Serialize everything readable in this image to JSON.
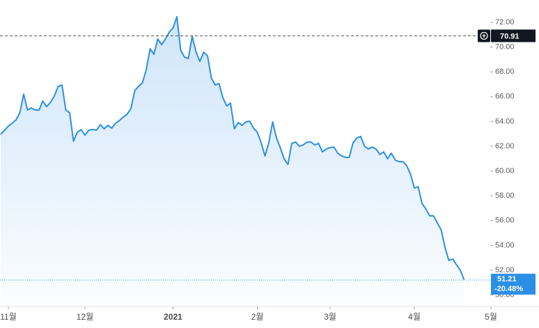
{
  "chart_data": {
    "type": "area",
    "color": "#2b8fe6",
    "fill_color": "#cfe5fa",
    "categories": [
      null,
      null,
      "11월",
      null,
      null,
      null,
      null,
      null,
      null,
      null,
      null,
      null,
      null,
      null,
      null,
      null,
      null,
      null,
      null,
      null,
      null,
      null,
      "12월",
      null,
      null,
      null,
      null,
      null,
      null,
      null,
      null,
      null,
      null,
      null,
      null,
      null,
      null,
      null,
      null,
      null,
      null,
      null,
      null,
      null,
      null,
      "2021",
      null,
      null,
      null,
      null,
      null,
      null,
      null,
      null,
      null,
      null,
      null,
      null,
      null,
      null,
      null,
      null,
      null,
      null,
      null,
      null,
      null,
      "2월",
      null,
      null,
      null,
      null,
      null,
      null,
      null,
      null,
      null,
      null,
      null,
      null,
      null,
      null,
      null,
      null,
      null,
      null,
      "3월",
      null,
      null,
      null,
      null,
      null,
      null,
      null,
      null,
      null,
      null,
      null,
      null,
      null,
      null,
      null,
      null,
      null,
      null,
      null,
      null,
      null,
      "4월",
      null,
      null,
      null,
      null,
      null,
      null,
      null,
      null,
      null,
      null,
      null,
      null,
      null,
      null,
      null,
      null,
      null,
      null,
      null,
      "5월"
    ],
    "values": [
      62.96,
      63.3,
      63.63,
      63.86,
      64.13,
      64.7,
      66.2,
      64.92,
      65.09,
      64.92,
      64.92,
      65.65,
      65.2,
      65.54,
      66.05,
      66.83,
      66.94,
      64.92,
      64.7,
      62.4,
      63.13,
      63.35,
      62.9,
      63.3,
      63.35,
      63.3,
      63.74,
      63.41,
      63.69,
      63.46,
      63.86,
      64.08,
      64.36,
      64.58,
      65.03,
      66.49,
      66.83,
      67.11,
      68.18,
      69.87,
      69.42,
      70.65,
      70.2,
      70.65,
      71.21,
      71.55,
      72.45,
      69.75,
      69.19,
      69.08,
      70.88,
      69.59,
      68.85,
      69.59,
      69.3,
      67.51,
      66.94,
      67.06,
      65.93,
      65.26,
      65.48,
      63.41,
      63.91,
      63.69,
      63.97,
      64.02,
      63.46,
      63.13,
      62.28,
      61.22,
      62.28,
      63.97,
      62.67,
      61.89,
      60.99,
      60.54,
      62.23,
      62.34,
      62.0,
      62.11,
      62.34,
      62.34,
      62.11,
      62.23,
      61.55,
      61.78,
      61.89,
      61.94,
      61.44,
      61.22,
      61.1,
      61.1,
      62.28,
      62.67,
      62.79,
      62.0,
      61.78,
      61.94,
      61.78,
      61.33,
      61.55,
      60.99,
      61.44,
      60.88,
      60.76,
      60.76,
      60.43,
      59.75,
      58.63,
      58.74,
      57.39,
      56.94,
      56.38,
      56.38,
      55.82,
      55.26,
      53.85,
      52.79,
      52.9,
      52.45,
      52.0,
      51.21,
      null,
      null,
      null,
      null,
      null,
      null,
      null
    ],
    "ylim": [
      49.08,
      73.8
    ],
    "yticks": [
      {
        "value": 50,
        "label": "50.00"
      },
      {
        "value": 52,
        "label": "52.00"
      },
      {
        "value": 54,
        "label": "54.00"
      },
      {
        "value": 56,
        "label": "56.00"
      },
      {
        "value": 58,
        "label": "58.00"
      },
      {
        "value": 60,
        "label": "60.00"
      },
      {
        "value": 62,
        "label": "62.00"
      },
      {
        "value": 64,
        "label": "64.00"
      },
      {
        "value": 66,
        "label": "66.00"
      },
      {
        "value": 68,
        "label": "68.00"
      },
      {
        "value": 70,
        "label": "70.00"
      },
      {
        "value": 72,
        "label": "72.00"
      }
    ],
    "reference_line": 70.91,
    "last_price": 51.21,
    "last_change": "-20.48%",
    "grid": false
  }
}
